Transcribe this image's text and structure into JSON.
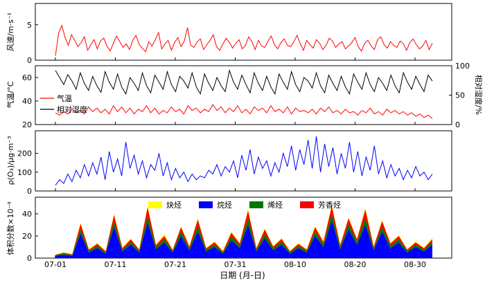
{
  "chart_data": [
    {
      "type": "line",
      "panel": "wind",
      "ylabel": "风速/m·s⁻¹",
      "ylim": [
        0,
        8
      ],
      "yticks": [
        "0",
        "5"
      ],
      "x_start": "07-01",
      "x_end": "09-01",
      "series": [
        {
          "color": "#ff0000",
          "values": [
            0.6,
            3.8,
            4.9,
            3.2,
            2.1,
            3.6,
            2.8,
            1.9,
            2.5,
            3.3,
            1.4,
            2.2,
            2.9,
            1.6,
            2.7,
            3.1,
            2.0,
            1.3,
            2.4,
            3.4,
            2.6,
            1.8,
            2.3,
            1.5,
            2.8,
            3.5,
            2.2,
            1.7,
            1.2,
            2.6,
            2.0,
            2.9,
            3.9,
            1.6,
            2.3,
            2.8,
            1.4,
            2.5,
            3.2,
            1.9,
            2.7,
            4.6,
            2.1,
            1.8,
            2.6,
            3.0,
            1.5,
            2.2,
            2.8,
            3.6,
            1.9,
            1.4,
            2.3,
            3.1,
            2.5,
            1.7,
            2.4,
            2.9,
            1.6,
            2.1,
            3.3,
            2.6,
            1.5,
            2.8,
            2.0,
            1.8,
            2.7,
            3.4,
            2.2,
            1.6,
            2.5,
            3.0,
            2.1,
            1.9,
            2.6,
            3.5,
            2.3,
            1.4,
            2.8,
            2.2,
            1.7,
            2.9,
            2.4,
            1.5,
            2.1,
            3.1,
            2.7,
            1.8,
            2.3,
            2.6,
            1.6,
            2.0,
            2.5,
            3.2,
            1.9,
            1.3,
            2.4,
            2.8,
            2.0,
            1.5,
            2.9,
            3.3,
            2.2,
            1.7,
            2.6,
            2.1,
            1.8,
            2.7,
            2.3,
            1.4,
            2.5,
            3.0,
            2.2,
            1.6,
            2.0,
            2.8,
            1.5,
            2.4
          ]
        }
      ]
    },
    {
      "type": "line",
      "panel": "temp-humidity",
      "ylabel": "气温/°C",
      "ylabel_right": "相对湿度/%",
      "ylim": [
        20,
        70
      ],
      "yticks": [
        "20",
        "40",
        "60"
      ],
      "ylim_right": [
        0,
        100
      ],
      "yticks_right": [
        "0",
        "50",
        "100"
      ],
      "series": [
        {
          "name": "气温",
          "color": "#ff0000",
          "values": [
            30,
            28,
            31,
            29,
            33,
            30,
            32,
            29,
            35,
            31,
            34,
            30,
            33,
            29,
            36,
            31,
            35,
            30,
            34,
            29,
            33,
            31,
            36,
            30,
            34,
            29,
            32,
            30,
            35,
            31,
            33,
            29,
            36,
            32,
            34,
            30,
            33,
            31,
            37,
            32,
            35,
            30,
            34,
            31,
            36,
            30,
            33,
            29,
            35,
            32,
            34,
            30,
            36,
            31,
            33,
            30,
            35,
            29,
            34,
            31,
            32,
            30,
            33,
            29,
            34,
            31,
            35,
            30,
            32,
            29,
            33,
            30,
            31,
            28,
            32,
            30,
            34,
            29,
            31,
            28,
            33,
            30,
            32,
            29,
            31,
            28,
            30,
            27,
            29,
            26,
            28,
            25
          ]
        },
        {
          "name": "相对湿度",
          "color": "#000000",
          "values": [
            92,
            80,
            68,
            85,
            74,
            60,
            88,
            70,
            58,
            82,
            66,
            55,
            90,
            72,
            60,
            86,
            64,
            52,
            80,
            70,
            58,
            88,
            66,
            54,
            84,
            72,
            60,
            90,
            68,
            56,
            82,
            74,
            62,
            88,
            64,
            52,
            86,
            70,
            58,
            80,
            66,
            56,
            92,
            72,
            60,
            84,
            68,
            54,
            88,
            70,
            58,
            82,
            64,
            52,
            86,
            72,
            60,
            90,
            68,
            56,
            80,
            74,
            62,
            88,
            66,
            54,
            84,
            70,
            58,
            82,
            64,
            52,
            86,
            72,
            60,
            88,
            68,
            56,
            80,
            70,
            58,
            84,
            66,
            54,
            88,
            72,
            60,
            82,
            68,
            56,
            84,
            74
          ]
        }
      ]
    },
    {
      "type": "line",
      "panel": "ozone",
      "ylabel": "ρ(O₃)/μg·m⁻³",
      "ylim": [
        0,
        320
      ],
      "yticks": [
        "0",
        "100",
        "200"
      ],
      "series": [
        {
          "color": "#0000ff",
          "values": [
            30,
            60,
            40,
            90,
            50,
            110,
            70,
            140,
            80,
            150,
            90,
            180,
            60,
            210,
            100,
            170,
            80,
            260,
            120,
            190,
            90,
            160,
            70,
            140,
            110,
            200,
            80,
            150,
            60,
            120,
            70,
            100,
            50,
            90,
            60,
            80,
            70,
            110,
            90,
            140,
            80,
            130,
            100,
            160,
            70,
            190,
            110,
            220,
            90,
            180,
            120,
            160,
            80,
            150,
            100,
            200,
            130,
            240,
            110,
            220,
            140,
            270,
            120,
            290,
            100,
            250,
            130,
            230,
            90,
            200,
            120,
            260,
            100,
            210,
            80,
            180,
            110,
            240,
            90,
            160,
            70,
            140,
            80,
            120,
            60,
            110,
            70,
            130,
            80,
            100,
            60,
            90
          ]
        }
      ]
    },
    {
      "type": "area",
      "panel": "vocs",
      "ylabel": "体积分数×10⁻⁹",
      "ylim": [
        0,
        55
      ],
      "yticks": [
        "0",
        "20",
        "40"
      ],
      "xlabel": "日期 (月-日)",
      "xticks": [
        "07-01",
        "07-11",
        "07-21",
        "07-31",
        "08-10",
        "08-20",
        "08-30"
      ],
      "series": [
        {
          "name": "炔烃",
          "color": "#ffff00",
          "values": [
            0.3,
            0.5,
            0.4,
            1.2,
            0.6,
            0.8,
            0.5,
            1.5,
            0.7,
            0.9,
            0.6,
            1.3,
            0.8,
            1.6,
            0.5,
            1.0,
            0.7,
            1.4,
            0.6,
            0.9,
            0.5,
            1.1,
            0.8,
            1.7,
            0.6,
            1.2,
            0.7,
            1.0,
            0.5,
            0.9,
            0.6,
            1.3,
            0.8,
            1.5,
            0.7,
            1.1,
            0.9,
            1.8,
            0.6,
            1.2,
            0.7,
            1.0,
            0.5,
            0.8,
            0.6,
            1.1
          ]
        },
        {
          "name": "烷烃",
          "color": "#0000ff",
          "values": [
            2,
            3,
            2,
            22,
            5,
            9,
            4,
            28,
            6,
            12,
            5,
            32,
            8,
            14,
            5,
            20,
            7,
            24,
            6,
            10,
            4,
            16,
            9,
            30,
            6,
            18,
            7,
            12,
            4,
            9,
            5,
            20,
            10,
            34,
            8,
            26,
            12,
            30,
            7,
            24,
            9,
            14,
            5,
            10,
            6,
            12
          ]
        },
        {
          "name": "烯烃",
          "color": "#007700",
          "values": [
            0.6,
            1.0,
            0.8,
            4,
            1.5,
            2,
            1.2,
            5,
            1.6,
            2.4,
            1.4,
            6,
            2,
            3,
            1.3,
            4,
            1.8,
            5,
            1.5,
            2.2,
            1.1,
            3.5,
            2.2,
            6,
            1.6,
            4,
            1.8,
            2.8,
            1.2,
            2,
            1.4,
            4,
            2.4,
            6,
            2,
            5,
            2.6,
            6,
            1.8,
            4.5,
            2.2,
            3,
            1.4,
            2.2,
            1.6,
            2.6
          ]
        },
        {
          "name": "芳香烃",
          "color": "#ff0000",
          "values": [
            0.4,
            0.8,
            0.6,
            5,
            1.2,
            2,
            1,
            6,
            1.4,
            2.6,
            1.2,
            8,
            1.8,
            3,
            1.1,
            4,
            1.6,
            6,
            1.3,
            2.2,
            1,
            3.5,
            2,
            7,
            1.4,
            4,
            1.6,
            2.6,
            1,
            1.8,
            1.2,
            4,
            2.2,
            7,
            1.8,
            5,
            2.4,
            8,
            1.6,
            5,
            2,
            3,
            1.2,
            2,
            1.4,
            2.4
          ]
        }
      ]
    }
  ]
}
